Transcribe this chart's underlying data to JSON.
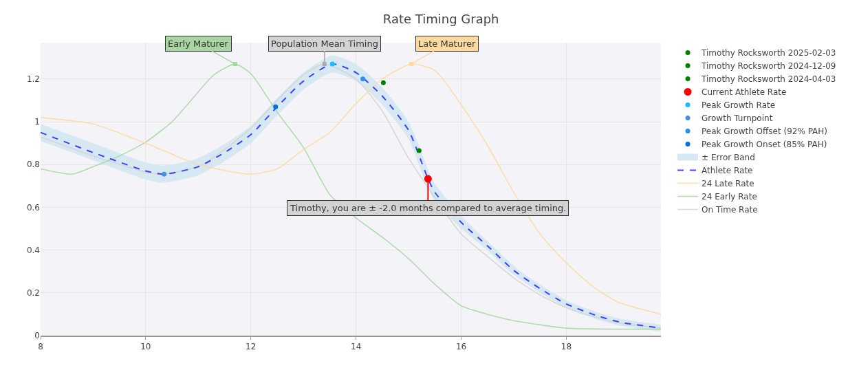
{
  "chart_data": {
    "type": "line",
    "title": "Rate Timing Graph",
    "xlim": [
      8,
      19.8
    ],
    "xticks": [
      8,
      10,
      12,
      14,
      16,
      18
    ],
    "ylim": [
      0,
      1.37
    ],
    "yticks": [
      0,
      0.2,
      0.4,
      0.6,
      0.8,
      1,
      1.2
    ],
    "grid": true,
    "legend": "right",
    "series": [
      {
        "name": "± Error Band",
        "color": "#d6e8f2",
        "x": [
          8,
          9,
          10,
          10.35,
          11,
          11.5,
          12,
          12.5,
          13,
          13.55,
          14,
          14.5,
          15,
          15.37,
          15.5,
          16,
          16.5,
          17,
          17.5,
          18,
          18.5,
          19,
          19.8
        ],
        "values": [
          0.95,
          0.856,
          0.77,
          0.755,
          0.79,
          0.856,
          0.94,
          1.07,
          1.19,
          1.27,
          1.23,
          1.12,
          0.96,
          0.733,
          0.67,
          0.53,
          0.42,
          0.305,
          0.22,
          0.148,
          0.1,
          0.064,
          0.035
        ],
        "lower": [
          0.91,
          0.82,
          0.73,
          0.715,
          0.75,
          0.816,
          0.9,
          1.03,
          1.15,
          1.23,
          1.19,
          1.08,
          0.92,
          0.69,
          0.63,
          0.5,
          0.4,
          0.29,
          0.21,
          0.14,
          0.095,
          0.06,
          0.033
        ],
        "upper": [
          0.99,
          0.9,
          0.81,
          0.795,
          0.83,
          0.896,
          0.98,
          1.11,
          1.23,
          1.31,
          1.27,
          1.16,
          1.0,
          0.77,
          0.71,
          0.56,
          0.44,
          0.32,
          0.23,
          0.156,
          0.105,
          0.068,
          0.037
        ]
      },
      {
        "name": "On Time Rate",
        "color": "#d3d3d3",
        "x": [
          8,
          9,
          10,
          10.3,
          11,
          11.5,
          12,
          12.5,
          13,
          13.4,
          14,
          14.5,
          15,
          16,
          16.5,
          17,
          17.5,
          18,
          18.5,
          19,
          19.8
        ],
        "values": [
          0.93,
          0.84,
          0.765,
          0.755,
          0.79,
          0.87,
          0.97,
          1.1,
          1.22,
          1.27,
          1.2,
          1.05,
          0.83,
          0.476,
          0.37,
          0.27,
          0.19,
          0.13,
          0.09,
          0.06,
          0.035
        ]
      },
      {
        "name": "24 Early Rate",
        "color": "#a8d5a2",
        "x": [
          8,
          8.6,
          9,
          9.5,
          10,
          10.5,
          11,
          11.3,
          11.7,
          12,
          12.5,
          13,
          13.5,
          14,
          14.5,
          15,
          15.5,
          16,
          16.5,
          17,
          18,
          19,
          19.8
        ],
        "values": [
          0.78,
          0.755,
          0.79,
          0.84,
          0.905,
          1.0,
          1.14,
          1.22,
          1.27,
          1.225,
          1.045,
          0.88,
          0.66,
          0.55,
          0.46,
          0.36,
          0.24,
          0.14,
          0.1,
          0.07,
          0.035,
          0.03,
          0.03
        ]
      },
      {
        "name": "24 Late Rate",
        "color": "#fdd9a0",
        "x": [
          8,
          9,
          10,
          11,
          12,
          12.5,
          13,
          13.5,
          14,
          14.5,
          15.05,
          15.5,
          16,
          16.5,
          17,
          17.5,
          18,
          18.5,
          19,
          19.8
        ],
        "values": [
          1.02,
          0.99,
          0.9,
          0.8,
          0.755,
          0.78,
          0.87,
          0.95,
          1.085,
          1.2,
          1.27,
          1.24,
          1.08,
          0.89,
          0.67,
          0.475,
          0.34,
          0.23,
          0.155,
          0.1
        ]
      },
      {
        "name": "Athlete Rate",
        "color": "#3f3fff",
        "line_style": "dashed",
        "x": [
          8,
          9,
          10,
          10.35,
          11,
          11.5,
          12,
          12.5,
          13,
          13.55,
          14,
          14.5,
          15,
          15.37,
          15.5,
          16,
          16.5,
          17,
          17.5,
          18,
          18.5,
          19,
          19.8
        ],
        "values": [
          0.95,
          0.856,
          0.77,
          0.755,
          0.79,
          0.856,
          0.94,
          1.07,
          1.19,
          1.27,
          1.23,
          1.12,
          0.96,
          0.733,
          0.67,
          0.53,
          0.42,
          0.305,
          0.22,
          0.148,
          0.1,
          0.064,
          0.035
        ]
      },
      {
        "name": "Peak Growth Onset (85% PAH)",
        "type": "scatter",
        "marker": "circle",
        "color": "#0a6fd6",
        "x": [
          12.47
        ],
        "values": [
          1.07
        ]
      },
      {
        "name": "Peak Growth Offset (92% PAH)",
        "type": "scatter",
        "marker": "circle",
        "color": "#2b8ef0",
        "x": [
          14.13
        ],
        "values": [
          1.2
        ]
      },
      {
        "name": "Growth Turnpoint",
        "type": "scatter",
        "marker": "circle",
        "color": "#4a8fe0",
        "x": [
          10.35
        ],
        "values": [
          0.755
        ]
      },
      {
        "name": "Peak Growth Rate",
        "type": "scatter",
        "marker": "circle",
        "color": "#12bfff",
        "x": [
          13.55
        ],
        "values": [
          1.27
        ]
      },
      {
        "name": "Current Athlete Rate",
        "type": "scatter",
        "marker": "circle",
        "color": "#ff0000",
        "x": [
          15.37
        ],
        "values": [
          0.733
        ]
      },
      {
        "name": "Timothy Rocksworth 2024-04-03",
        "type": "scatter",
        "marker": "circle",
        "color": "#008000",
        "x": [
          null
        ],
        "values": [
          null
        ]
      },
      {
        "name": "Timothy Rocksworth 2024-12-09",
        "type": "scatter",
        "marker": "circle",
        "color": "#008000",
        "x": [
          14.52
        ],
        "values": [
          1.183
        ]
      },
      {
        "name": "Timothy Rocksworth 2025-02-03",
        "type": "scatter",
        "marker": "circle",
        "color": "#008000",
        "x": [
          15.2
        ],
        "values": [
          0.865
        ]
      }
    ],
    "annotations": [
      {
        "text": "Early Maturer",
        "x": 11.7,
        "y": 1.27
      },
      {
        "text": "Population Mean Timing",
        "x": 13.4,
        "y": 1.27
      },
      {
        "text": "Late Maturer",
        "x": 15.05,
        "y": 1.27
      },
      {
        "text": "Timothy, you are ± -2.0 months compared to average timing.",
        "x": 15.37,
        "y": 0.733
      }
    ]
  }
}
